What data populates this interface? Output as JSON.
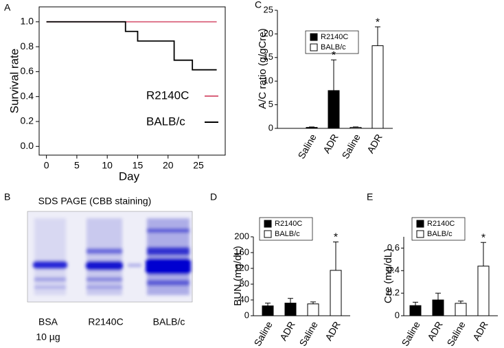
{
  "panel_labels": [
    "A",
    "B",
    "C",
    "D",
    "E"
  ],
  "gel": {
    "title": "SDS PAGE (CBB staining)",
    "lanes": [
      [
        "BSA",
        "10 µg"
      ],
      [
        "R2140C"
      ],
      [
        "BALB/c"
      ]
    ]
  },
  "chart_data": [
    {
      "type": "line",
      "x_label": "Day",
      "y_label": "Survival rate",
      "xlim": [
        -1.2,
        29.4
      ],
      "xticks": [
        0,
        5,
        10,
        15,
        20,
        25
      ],
      "ylim": [
        -0.07,
        1.12
      ],
      "yticks": [
        {
          "value": 0,
          "label": "0.0"
        },
        {
          "value": 0.2,
          "label": "0.2"
        },
        {
          "value": 0.4,
          "label": "0.4"
        },
        {
          "value": 0.6,
          "label": "0.6"
        },
        {
          "value": 0.8,
          "label": "0.8"
        },
        {
          "value": 1,
          "label": "1.0"
        }
      ],
      "series": [
        {
          "name": "R2140C",
          "color": "#d9607a",
          "x": [
            0,
            28
          ],
          "values": [
            1,
            1
          ]
        },
        {
          "name": "BALB/c",
          "color": "#000000",
          "x": [
            0,
            13,
            13,
            15,
            15,
            21,
            21,
            24,
            24,
            28
          ],
          "values": [
            1,
            1,
            0.923,
            0.923,
            0.846,
            0.846,
            0.692,
            0.692,
            0.615,
            0.615
          ]
        }
      ]
    },
    {
      "type": "bar",
      "y_label": "A/C ratio (g/gCre)",
      "categories": [
        "Saline",
        "ADR",
        "Saline",
        "ADR"
      ],
      "ylim": [
        0,
        25
      ],
      "yticks": [
        0,
        5,
        10,
        15,
        20,
        25
      ],
      "series": [
        {
          "name": "R2140C",
          "color": "#000000",
          "values": [
            0.2,
            8,
            null,
            null
          ],
          "errors": [
            0.1,
            6.5,
            null,
            null
          ],
          "significance": [
            null,
            "*",
            null,
            null
          ]
        },
        {
          "name": "BALB/c",
          "color": "#ffffff",
          "values": [
            null,
            null,
            0.2,
            17.5
          ],
          "errors": [
            null,
            null,
            0.1,
            4
          ],
          "significance": [
            null,
            null,
            null,
            "*"
          ]
        }
      ]
    },
    {
      "type": "bar",
      "y_label": "BUN (mg/dL)",
      "categories": [
        "Saline",
        "ADR",
        "Saline",
        "ADR"
      ],
      "ylim": [
        0,
        200
      ],
      "yticks": [
        0,
        40,
        80,
        120,
        160,
        200
      ],
      "series": [
        {
          "name": "R2140C",
          "color": "#000000",
          "values": [
            25,
            32,
            null,
            null
          ],
          "errors": [
            7,
            12,
            null,
            null
          ],
          "significance": [
            null,
            null,
            null,
            null
          ]
        },
        {
          "name": "BALB/c",
          "color": "#ffffff",
          "values": [
            null,
            null,
            30,
            115
          ],
          "errors": [
            null,
            null,
            5,
            72
          ],
          "significance": [
            null,
            null,
            null,
            "*"
          ]
        }
      ]
    },
    {
      "type": "bar",
      "y_label": "Cre (mg/dL)",
      "categories": [
        "Saline",
        "ADR",
        "Saline",
        "ADR"
      ],
      "ylim": [
        0,
        0.7
      ],
      "yticks": [
        0,
        0.2,
        0.4,
        0.6
      ],
      "series": [
        {
          "name": "R2140C",
          "color": "#000000",
          "values": [
            0.09,
            0.14,
            null,
            null
          ],
          "errors": [
            0.03,
            0.06,
            null,
            null
          ],
          "significance": [
            null,
            null,
            null,
            null
          ]
        },
        {
          "name": "BALB/c",
          "color": "#ffffff",
          "values": [
            null,
            null,
            0.11,
            0.44
          ],
          "errors": [
            null,
            null,
            0.02,
            0.21
          ],
          "significance": [
            null,
            null,
            null,
            "*"
          ]
        }
      ]
    }
  ]
}
